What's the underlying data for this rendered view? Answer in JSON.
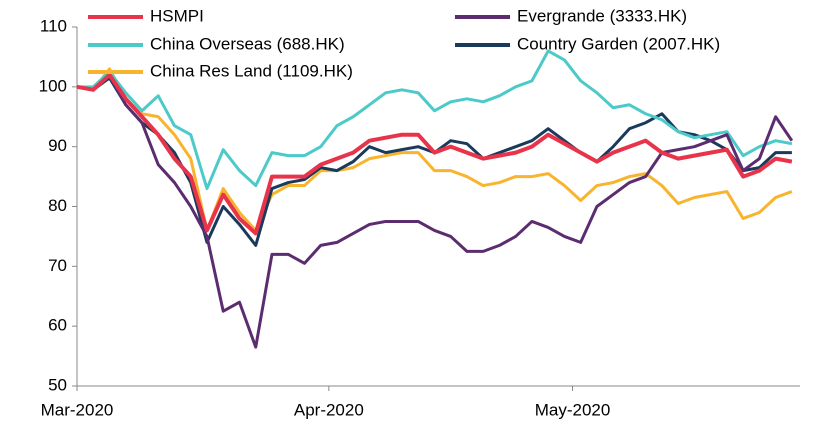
{
  "chart_data": {
    "type": "line",
    "x": [
      0,
      2,
      4,
      6,
      8,
      10,
      12,
      14,
      16,
      18,
      20,
      22,
      24,
      26,
      28,
      30,
      32,
      34,
      36,
      38,
      40,
      42,
      44,
      46,
      48,
      50,
      52,
      54,
      56,
      58,
      60,
      62,
      64,
      66,
      68,
      70,
      72,
      74,
      76,
      78,
      80,
      82,
      84,
      86,
      88
    ],
    "xlim": [
      0,
      89
    ],
    "xticks": [
      {
        "value": 0,
        "label": "Mar-2020"
      },
      {
        "value": 31,
        "label": "Apr-2020"
      },
      {
        "value": 61,
        "label": "May-2020"
      }
    ],
    "ylim": [
      50,
      110
    ],
    "yticks": [
      50,
      60,
      70,
      80,
      90,
      100,
      110
    ],
    "legend": "top",
    "series": [
      {
        "name": "HSMPI",
        "color": "#e8344a",
        "values": [
          100,
          99.5,
          102,
          98,
          95,
          92,
          88,
          85,
          76,
          82,
          78,
          75.5,
          85,
          85,
          85,
          87,
          88,
          89,
          91,
          91.5,
          92,
          92,
          89,
          90,
          89,
          88,
          88.5,
          89,
          90,
          92,
          90.5,
          89,
          87.5,
          89,
          90,
          91,
          89,
          88,
          88.5,
          89,
          89.5,
          85,
          86,
          88,
          87.5
        ]
      },
      {
        "name": "Evergrande (3333.HK)",
        "color": "#5b2c6f",
        "values": [
          100,
          99.5,
          102,
          97,
          94,
          87,
          84,
          80,
          75,
          62.5,
          64,
          56.5,
          72,
          72,
          70.5,
          73.5,
          74,
          75.5,
          77,
          77.5,
          77.5,
          77.5,
          76,
          75,
          72.5,
          72.5,
          73.5,
          75,
          77.5,
          76.5,
          75,
          74,
          80,
          82,
          84,
          85,
          89,
          89.5,
          90,
          91,
          92,
          86,
          88,
          95,
          91
        ]
      },
      {
        "name": "China Overseas (688.HK)",
        "color": "#4cc9c9",
        "values": [
          100,
          100,
          102.5,
          99,
          96,
          98.5,
          93.5,
          92,
          83,
          89.5,
          86,
          83.5,
          89,
          88.5,
          88.5,
          90,
          93.5,
          95,
          97,
          99,
          99.5,
          99,
          96,
          97.5,
          98,
          97.5,
          98.5,
          100,
          101,
          106,
          104.5,
          101,
          99,
          96.5,
          97,
          95.5,
          94.5,
          92.5,
          91.5,
          92,
          92.5,
          88.5,
          90,
          91,
          90.5
        ]
      },
      {
        "name": "Country Garden (2007.HK)",
        "color": "#1a3a5c",
        "values": [
          100,
          99.5,
          101.5,
          97,
          94,
          92,
          89,
          84,
          74,
          80,
          77,
          73.5,
          83,
          84,
          84.5,
          86.5,
          86,
          87.5,
          90,
          89,
          89.5,
          90,
          89,
          91,
          90.5,
          88,
          89,
          90,
          91,
          93,
          91,
          89,
          87.5,
          90,
          93,
          94,
          95.5,
          92.5,
          92,
          91,
          89.5,
          86,
          86.5,
          89,
          89
        ]
      },
      {
        "name": "China Res Land (1109.HK)",
        "color": "#f9b42d",
        "values": [
          100,
          99.5,
          103,
          98,
          95.5,
          95,
          92,
          88,
          76,
          83,
          79,
          76,
          82,
          83.5,
          83.5,
          86,
          86,
          86.5,
          88,
          88.5,
          89,
          89,
          86,
          86,
          85,
          83.5,
          84,
          85,
          85,
          85.5,
          83.5,
          81,
          83.5,
          84,
          85,
          85.5,
          83.5,
          80.5,
          81.5,
          82,
          82.5,
          78,
          79,
          81.5,
          82.5
        ]
      }
    ]
  }
}
